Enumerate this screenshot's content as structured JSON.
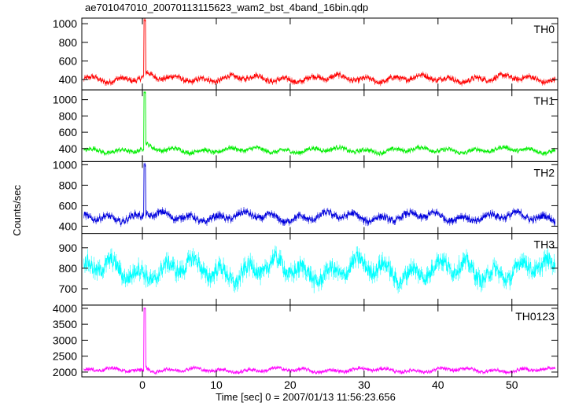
{
  "chart_data": {
    "type": "line",
    "title": "ae701047010_20070113115623_wam2_bst_4band_16bin.qdp",
    "xlabel": "Time [sec] 0 = 2007/01/13 11:56:23.656",
    "ylabel": "Counts/sec",
    "xlim": [
      -8.2,
      56.2
    ],
    "x_ticks": [
      0,
      10,
      20,
      30,
      40,
      50
    ],
    "panels": [
      {
        "name": "TH0",
        "color": "#ff0000",
        "ylim": [
          290,
          1060
        ],
        "y_ticks": [
          400,
          600,
          800,
          1000
        ],
        "baseline": 410,
        "noise": 38,
        "spike_x": 0.3,
        "spike_peak": 1040,
        "decay_after": 40
      },
      {
        "name": "TH1",
        "color": "#00ee00",
        "ylim": [
          240,
          1120
        ],
        "y_ticks": [
          400,
          600,
          800,
          1000
        ],
        "baseline": 380,
        "noise": 34,
        "spike_x": 0.3,
        "spike_peak": 1090,
        "decay_after": 60
      },
      {
        "name": "TH2",
        "color": "#0000dd",
        "ylim": [
          330,
          1030
        ],
        "y_ticks": [
          400,
          600,
          800,
          1000
        ],
        "baseline": 490,
        "noise": 45,
        "spike_x": 0.3,
        "spike_peak": 1000,
        "decay_after": 40
      },
      {
        "name": "TH3",
        "color": "#00ffff",
        "ylim": [
          620,
          970
        ],
        "y_ticks": [
          700,
          800,
          900
        ],
        "baseline": 790,
        "noise": 55,
        "spike_x": null,
        "spike_peak": null,
        "decay_after": 0
      },
      {
        "name": "TH0123",
        "color": "#ff00ff",
        "ylim": [
          1850,
          4100
        ],
        "y_ticks": [
          2000,
          2500,
          3000,
          3500,
          4000
        ],
        "baseline": 2060,
        "noise": 70,
        "spike_x": 0.3,
        "spike_peak": 4000,
        "decay_after": 150
      }
    ]
  }
}
